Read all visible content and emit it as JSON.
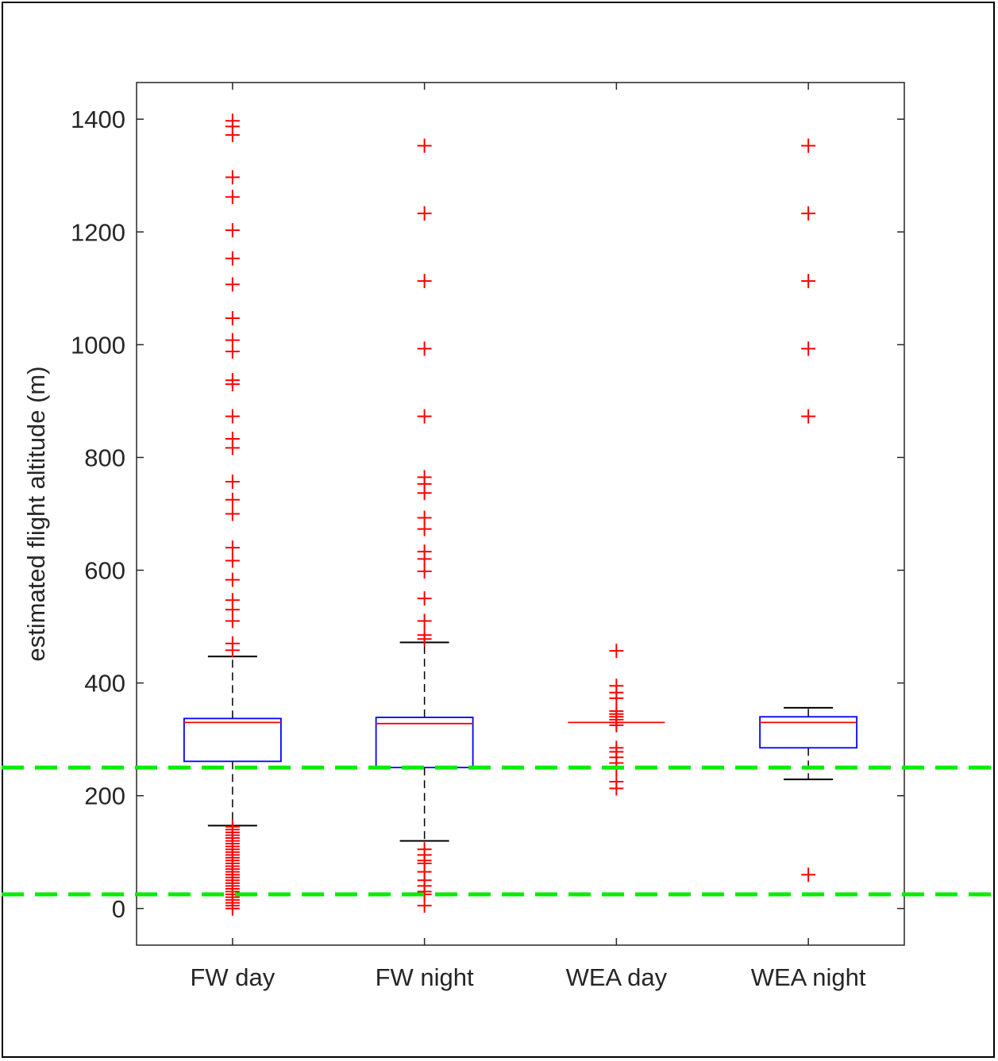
{
  "chart_data": {
    "type": "box",
    "title": "",
    "xlabel": "",
    "ylabel": "estimated flight altitude (m)",
    "ylim": [
      -65,
      1465
    ],
    "yticks": [
      0,
      200,
      400,
      600,
      800,
      1000,
      1200,
      1400
    ],
    "categories": [
      "FW day",
      "FW night",
      "WEA day",
      "WEA night"
    ],
    "boxes": [
      {
        "category": "FW day",
        "q1": 261,
        "median": 330,
        "q3": 337,
        "whisker_low": 147,
        "whisker_high": 447,
        "outliers": [
          1397,
          1387,
          1372,
          1297,
          1262,
          1203,
          1153,
          1107,
          1047,
          1008,
          988,
          937,
          930,
          873,
          833,
          817,
          757,
          725,
          700,
          640,
          617,
          583,
          547,
          530,
          510,
          470,
          458,
          145,
          140,
          135,
          130,
          125,
          120,
          115,
          110,
          105,
          100,
          95,
          90,
          85,
          80,
          75,
          70,
          65,
          60,
          55,
          50,
          45,
          40,
          35,
          30,
          25,
          20,
          15,
          10,
          5,
          0
        ]
      },
      {
        "category": "FW night",
        "q1": 250,
        "median": 328,
        "q3": 339,
        "whisker_low": 120,
        "whisker_high": 472,
        "outliers": [
          1353,
          1233,
          1113,
          993,
          873,
          765,
          753,
          737,
          693,
          673,
          633,
          620,
          598,
          550,
          510,
          485,
          478,
          105,
          95,
          85,
          80,
          65,
          50,
          40,
          30,
          25,
          5
        ]
      },
      {
        "category": "WEA day",
        "q1": 330,
        "median": 330,
        "q3": 330,
        "whisker_low": 330,
        "whisker_high": 330,
        "outliers": [
          457,
          395,
          383,
          373,
          350,
          345,
          340,
          335,
          330,
          325,
          285,
          278,
          268,
          258,
          248,
          225,
          213
        ]
      },
      {
        "category": "WEA night",
        "q1": 285,
        "median": 330,
        "q3": 340,
        "whisker_low": 229,
        "whisker_high": 356,
        "outliers": [
          1353,
          1233,
          1113,
          993,
          873,
          60
        ]
      }
    ],
    "reference_lines": [
      {
        "y": 250,
        "style": "dashed",
        "color": "#00ee00"
      },
      {
        "y": 25,
        "style": "dashed",
        "color": "#00ee00"
      }
    ],
    "colors": {
      "box": "#0000ff",
      "median": "#ff0000",
      "outlier": "#ff0000",
      "whisker": "#000000",
      "reference": "#00ee00"
    }
  }
}
